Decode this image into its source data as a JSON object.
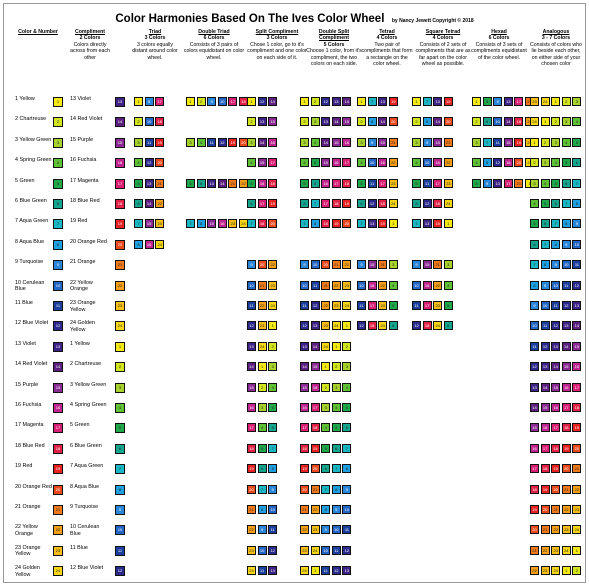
{
  "title": "Color Harmonies Based On The Ives Color Wheel",
  "copyright": "by Nancy Jewett Copyright © 2018",
  "headers": [
    {
      "key": "color_number",
      "title": "Color & Number",
      "count": "",
      "desc": ""
    },
    {
      "key": "compliment",
      "title": "Compliment",
      "count": "2 Colors",
      "desc": "Colors directly across from each other"
    },
    {
      "key": "triad",
      "title": "Triad",
      "count": "3 Colors",
      "desc": "3 colors equally distant around color wheel."
    },
    {
      "key": "double_triad",
      "title": "Double Triad",
      "count": "6 Colors",
      "desc": "Consists of 3 pairs of colors equidistant on color wheel."
    },
    {
      "key": "split_compliment",
      "title": "Split Compliment",
      "count": "3 Colors",
      "desc": "Chose 1 color, go to it's compliment and one color on each side of it."
    },
    {
      "key": "double_split",
      "title": "Double Split Compliment",
      "count": "5 Colors",
      "desc": "Choose 1 color, from it's compliment, the two colors on each side."
    },
    {
      "key": "tetrad",
      "title": "Tetrad",
      "count": "4 Colors",
      "desc": "Two pair of compliments that form a rectangle on the color wheel."
    },
    {
      "key": "square_tetrad",
      "title": "Square Tetrad",
      "count": "4 Colors",
      "desc": "Consists of 2 sets of compliments that are as far apart on the color wheel as possible."
    },
    {
      "key": "hexad",
      "title": "Hexad",
      "count": "6 Colors",
      "desc": "Consists of 3 sets of compliments equidistant of the color wheel."
    },
    {
      "key": "analogous",
      "title": "Analogous",
      "count": "3 - 7 Colors",
      "desc": "Consists of colors who lie beside each other, on either side of your chosen color"
    }
  ],
  "colors": [
    {
      "n": 1,
      "name": "Yellow",
      "hex": "#f4ea12"
    },
    {
      "n": 2,
      "name": "Chartreuse",
      "hex": "#d3e51b"
    },
    {
      "n": 3,
      "name": "Yellow Green",
      "hex": "#a6d22b"
    },
    {
      "n": 4,
      "name": "Spring Green",
      "hex": "#5fc134"
    },
    {
      "n": 5,
      "name": "Green",
      "hex": "#1ea84a"
    },
    {
      "n": 6,
      "name": "Blue Green",
      "hex": "#14a58f"
    },
    {
      "n": 7,
      "name": "Aqua Green",
      "hex": "#19b6c4"
    },
    {
      "n": 8,
      "name": "Aqua Blue",
      "hex": "#1d9fe0"
    },
    {
      "n": 9,
      "name": "Turquoise",
      "hex": "#2a86d8"
    },
    {
      "n": 10,
      "name": "Cerulean Blue",
      "hex": "#2466c4"
    },
    {
      "n": 11,
      "name": "Blue",
      "hex": "#1c3f9e"
    },
    {
      "n": 12,
      "name": "Blue Violet",
      "hex": "#2b2a8c"
    },
    {
      "n": 13,
      "name": "Violet",
      "hex": "#3d2386"
    },
    {
      "n": 14,
      "name": "Red Violet",
      "hex": "#5c2180"
    },
    {
      "n": 15,
      "name": "Purple",
      "hex": "#8c2a93"
    },
    {
      "n": 16,
      "name": "Fuchsia",
      "hex": "#c0248f"
    },
    {
      "n": 17,
      "name": "Magenta",
      "hex": "#d81f73"
    },
    {
      "n": 18,
      "name": "Blue Red",
      "hex": "#e12246"
    },
    {
      "n": 19,
      "name": "Red",
      "hex": "#e62222"
    },
    {
      "n": 20,
      "name": "Orange Red",
      "hex": "#ea4a1e"
    },
    {
      "n": 21,
      "name": "Orange",
      "hex": "#f07a19"
    },
    {
      "n": 22,
      "name": "Yellow Orange",
      "hex": "#f59f16"
    },
    {
      "n": 23,
      "name": "Orange Yellow",
      "hex": "#f7bf16"
    },
    {
      "n": 24,
      "name": "Golden Yellow",
      "hex": "#f8d714"
    }
  ],
  "row_labels": [
    {
      "color": "1 Yellow",
      "compliment": "13 Violet"
    },
    {
      "color": "2 Chartreuse",
      "compliment": "14 Red Violet"
    },
    {
      "color": "3 Yellow Green",
      "compliment": "15 Purple"
    },
    {
      "color": "4 Spring Green",
      "compliment": "16 Fuchsia"
    },
    {
      "color": "5 Green",
      "compliment": "17 Magenta"
    },
    {
      "color": "6 Blue Green",
      "compliment": "18 Blue Red"
    },
    {
      "color": "7 Aqua Green",
      "compliment": "19 Red"
    },
    {
      "color": "8 Aqua Blue",
      "compliment": "20 Orange Red"
    },
    {
      "color": "9 Turquoise",
      "compliment": "21 Orange"
    },
    {
      "color": "10 Cerulean Blue",
      "compliment": "22 Yellow Orange"
    },
    {
      "color": "11 Blue",
      "compliment": "23 Orange Yellow"
    },
    {
      "color": "12 Blue Violet",
      "compliment": "24 Golden Yellow"
    },
    {
      "color": "13 Violet",
      "compliment": "1 Yellow"
    },
    {
      "color": "14 Red Violet",
      "compliment": "2 Chartreuse"
    },
    {
      "color": "15 Purple",
      "compliment": "3 Yellow Green"
    },
    {
      "color": "16 Fuchsia",
      "compliment": "4 Spring Green"
    },
    {
      "color": "17 Magenta",
      "compliment": "5 Green"
    },
    {
      "color": "18 Blue Red",
      "compliment": "6 Blue Green"
    },
    {
      "color": "19 Red",
      "compliment": "7 Aqua Green"
    },
    {
      "color": "20 Orange Red",
      "compliment": "8 Aqua Blue"
    },
    {
      "color": "21 Orange",
      "compliment": "9 Turquoise"
    },
    {
      "color": "22 Yellow Orange",
      "compliment": "10 Cerulean Blue"
    },
    {
      "color": "23 Orange Yellow",
      "compliment": "11 Blue"
    },
    {
      "color": "24 Golden Yellow",
      "compliment": "12 Blue Violet"
    }
  ],
  "harmonies": [
    {
      "triad": [
        1,
        9,
        17
      ],
      "double_triad": [
        1,
        2,
        9,
        10,
        17,
        18
      ],
      "split": [
        1,
        12,
        14
      ],
      "double_split": [
        1,
        2,
        12,
        13,
        14
      ],
      "tetrad": [
        1,
        7,
        13,
        19
      ],
      "square": [
        1,
        7,
        13,
        19
      ],
      "hexad": [
        1,
        5,
        9,
        13,
        17,
        21
      ],
      "analogous": [
        23,
        24,
        1,
        2,
        3
      ]
    },
    {
      "triad": [
        2,
        10,
        18
      ],
      "double_triad": [],
      "split": [
        2,
        13,
        15
      ],
      "double_split": [
        2,
        3,
        13,
        14,
        15
      ],
      "tetrad": [
        2,
        8,
        14,
        20
      ],
      "square": [
        2,
        8,
        14,
        20
      ],
      "hexad": [
        2,
        6,
        10,
        14,
        18,
        22
      ],
      "analogous": [
        24,
        1,
        2,
        3,
        4
      ]
    },
    {
      "triad": [
        3,
        11,
        19
      ],
      "double_triad": [
        3,
        4,
        11,
        12,
        19,
        20
      ],
      "split": [
        3,
        14,
        16
      ],
      "double_split": [
        3,
        4,
        14,
        15,
        16
      ],
      "tetrad": [
        3,
        9,
        15,
        21
      ],
      "square": [
        3,
        9,
        15,
        21
      ],
      "hexad": [
        3,
        7,
        11,
        15,
        19,
        23
      ],
      "analogous": [
        1,
        2,
        3,
        4,
        5
      ]
    },
    {
      "triad": [
        4,
        12,
        20
      ],
      "double_triad": [],
      "split": [
        4,
        15,
        17
      ],
      "double_split": [
        4,
        5,
        15,
        16,
        17
      ],
      "tetrad": [
        4,
        10,
        16,
        22
      ],
      "square": [
        4,
        10,
        16,
        22
      ],
      "hexad": [
        4,
        8,
        12,
        16,
        20,
        24
      ],
      "analogous": [
        2,
        3,
        4,
        5,
        6
      ]
    },
    {
      "triad": [
        5,
        13,
        21
      ],
      "double_triad": [
        5,
        6,
        13,
        14,
        21,
        22
      ],
      "split": [
        5,
        16,
        18
      ],
      "double_split": [
        5,
        6,
        16,
        17,
        18
      ],
      "tetrad": [
        5,
        11,
        17,
        23
      ],
      "square": [
        5,
        11,
        17,
        23
      ],
      "hexad": [
        5,
        9,
        13,
        17,
        21,
        1
      ],
      "analogous": [
        3,
        4,
        5,
        6,
        7
      ]
    },
    {
      "triad": [
        6,
        14,
        22
      ],
      "double_triad": [],
      "split": [
        6,
        17,
        19
      ],
      "double_split": [
        6,
        7,
        17,
        18,
        19
      ],
      "tetrad": [
        6,
        12,
        18,
        24
      ],
      "square": [
        6,
        12,
        18,
        24
      ],
      "hexad": [],
      "analogous": [
        4,
        5,
        6,
        7,
        8
      ]
    },
    {
      "triad": [
        7,
        15,
        23
      ],
      "double_triad": [
        7,
        8,
        15,
        16,
        23,
        24
      ],
      "split": [
        7,
        18,
        20
      ],
      "double_split": [
        7,
        8,
        18,
        19,
        20
      ],
      "tetrad": [
        7,
        13,
        19,
        1
      ],
      "square": [
        7,
        13,
        19,
        1
      ],
      "hexad": [],
      "analogous": [
        5,
        6,
        7,
        8,
        9
      ]
    },
    {
      "triad": [
        8,
        16,
        24
      ],
      "double_triad": [],
      "split": [],
      "double_split": [],
      "tetrad": [],
      "square": [],
      "hexad": [],
      "analogous": [
        6,
        7,
        8,
        9,
        10
      ]
    },
    {
      "triad": [],
      "double_triad": [],
      "split": [
        9,
        20,
        22
      ],
      "double_split": [
        9,
        10,
        20,
        21,
        22
      ],
      "tetrad": [
        9,
        15,
        21,
        3
      ],
      "square": [
        9,
        15,
        21,
        3
      ],
      "hexad": [],
      "analogous": [
        7,
        8,
        9,
        10,
        11
      ]
    },
    {
      "triad": [],
      "double_triad": [],
      "split": [
        10,
        21,
        23
      ],
      "double_split": [
        10,
        11,
        21,
        22,
        23
      ],
      "tetrad": [
        10,
        16,
        22,
        4
      ],
      "square": [
        10,
        16,
        22,
        4
      ],
      "hexad": [],
      "analogous": [
        8,
        9,
        10,
        11,
        12
      ]
    },
    {
      "triad": [],
      "double_triad": [],
      "split": [
        11,
        22,
        24
      ],
      "double_split": [
        11,
        12,
        22,
        23,
        24
      ],
      "tetrad": [
        11,
        17,
        23,
        5
      ],
      "square": [
        11,
        17,
        23,
        5
      ],
      "hexad": [],
      "analogous": [
        9,
        10,
        11,
        12,
        13
      ]
    },
    {
      "triad": [],
      "double_triad": [],
      "split": [
        12,
        23,
        1
      ],
      "double_split": [
        12,
        13,
        23,
        24,
        1
      ],
      "tetrad": [
        12,
        18,
        24,
        6
      ],
      "square": [
        12,
        18,
        24,
        6
      ],
      "hexad": [],
      "analogous": [
        10,
        11,
        12,
        13,
        14
      ]
    },
    {
      "triad": [],
      "double_triad": [],
      "split": [
        13,
        24,
        2
      ],
      "double_split": [
        13,
        14,
        24,
        1,
        2
      ],
      "tetrad": [],
      "square": [],
      "hexad": [],
      "analogous": [
        11,
        12,
        13,
        14,
        15
      ]
    },
    {
      "triad": [],
      "double_triad": [],
      "split": [
        14,
        1,
        3
      ],
      "double_split": [
        14,
        15,
        1,
        2,
        3
      ],
      "tetrad": [],
      "square": [],
      "hexad": [],
      "analogous": [
        12,
        13,
        14,
        15,
        16
      ]
    },
    {
      "triad": [],
      "double_triad": [],
      "split": [
        15,
        2,
        4
      ],
      "double_split": [
        15,
        16,
        2,
        3,
        4
      ],
      "tetrad": [],
      "square": [],
      "hexad": [],
      "analogous": [
        13,
        14,
        15,
        16,
        17
      ]
    },
    {
      "triad": [],
      "double_triad": [],
      "split": [
        16,
        3,
        5
      ],
      "double_split": [
        16,
        17,
        3,
        4,
        5
      ],
      "tetrad": [],
      "square": [],
      "hexad": [],
      "analogous": [
        14,
        15,
        16,
        17,
        18
      ]
    },
    {
      "triad": [],
      "double_triad": [],
      "split": [
        17,
        4,
        6
      ],
      "double_split": [
        17,
        18,
        4,
        5,
        6
      ],
      "tetrad": [],
      "square": [],
      "hexad": [],
      "analogous": [
        15,
        16,
        17,
        18,
        19
      ]
    },
    {
      "triad": [],
      "double_triad": [],
      "split": [
        18,
        5,
        7
      ],
      "double_split": [
        18,
        19,
        5,
        6,
        7
      ],
      "tetrad": [],
      "square": [],
      "hexad": [],
      "analogous": [
        16,
        17,
        18,
        19,
        20
      ]
    },
    {
      "triad": [],
      "double_triad": [],
      "split": [
        19,
        6,
        8
      ],
      "double_split": [
        19,
        20,
        6,
        7,
        8
      ],
      "tetrad": [],
      "square": [],
      "hexad": [],
      "analogous": [
        17,
        18,
        19,
        20,
        21
      ]
    },
    {
      "triad": [],
      "double_triad": [],
      "split": [
        20,
        7,
        9
      ],
      "double_split": [
        20,
        21,
        7,
        8,
        9
      ],
      "tetrad": [],
      "square": [],
      "hexad": [],
      "analogous": [
        18,
        19,
        20,
        21,
        22
      ]
    },
    {
      "triad": [],
      "double_triad": [],
      "split": [
        21,
        8,
        10
      ],
      "double_split": [
        21,
        22,
        8,
        9,
        10
      ],
      "tetrad": [],
      "square": [],
      "hexad": [],
      "analogous": [
        19,
        20,
        21,
        22,
        23
      ]
    },
    {
      "triad": [],
      "double_triad": [],
      "split": [
        22,
        9,
        11
      ],
      "double_split": [
        22,
        23,
        9,
        10,
        11
      ],
      "tetrad": [],
      "square": [],
      "hexad": [],
      "analogous": [
        20,
        21,
        22,
        23,
        24
      ]
    },
    {
      "triad": [],
      "double_triad": [],
      "split": [
        23,
        10,
        12
      ],
      "double_split": [
        23,
        24,
        10,
        11,
        12
      ],
      "tetrad": [],
      "square": [],
      "hexad": [],
      "analogous": [
        21,
        22,
        23,
        24,
        1
      ]
    },
    {
      "triad": [],
      "double_triad": [],
      "split": [
        24,
        11,
        13
      ],
      "double_split": [
        24,
        1,
        11,
        12,
        13
      ],
      "tetrad": [],
      "square": [],
      "hexad": [],
      "analogous": [
        22,
        23,
        24,
        1,
        2
      ]
    }
  ]
}
